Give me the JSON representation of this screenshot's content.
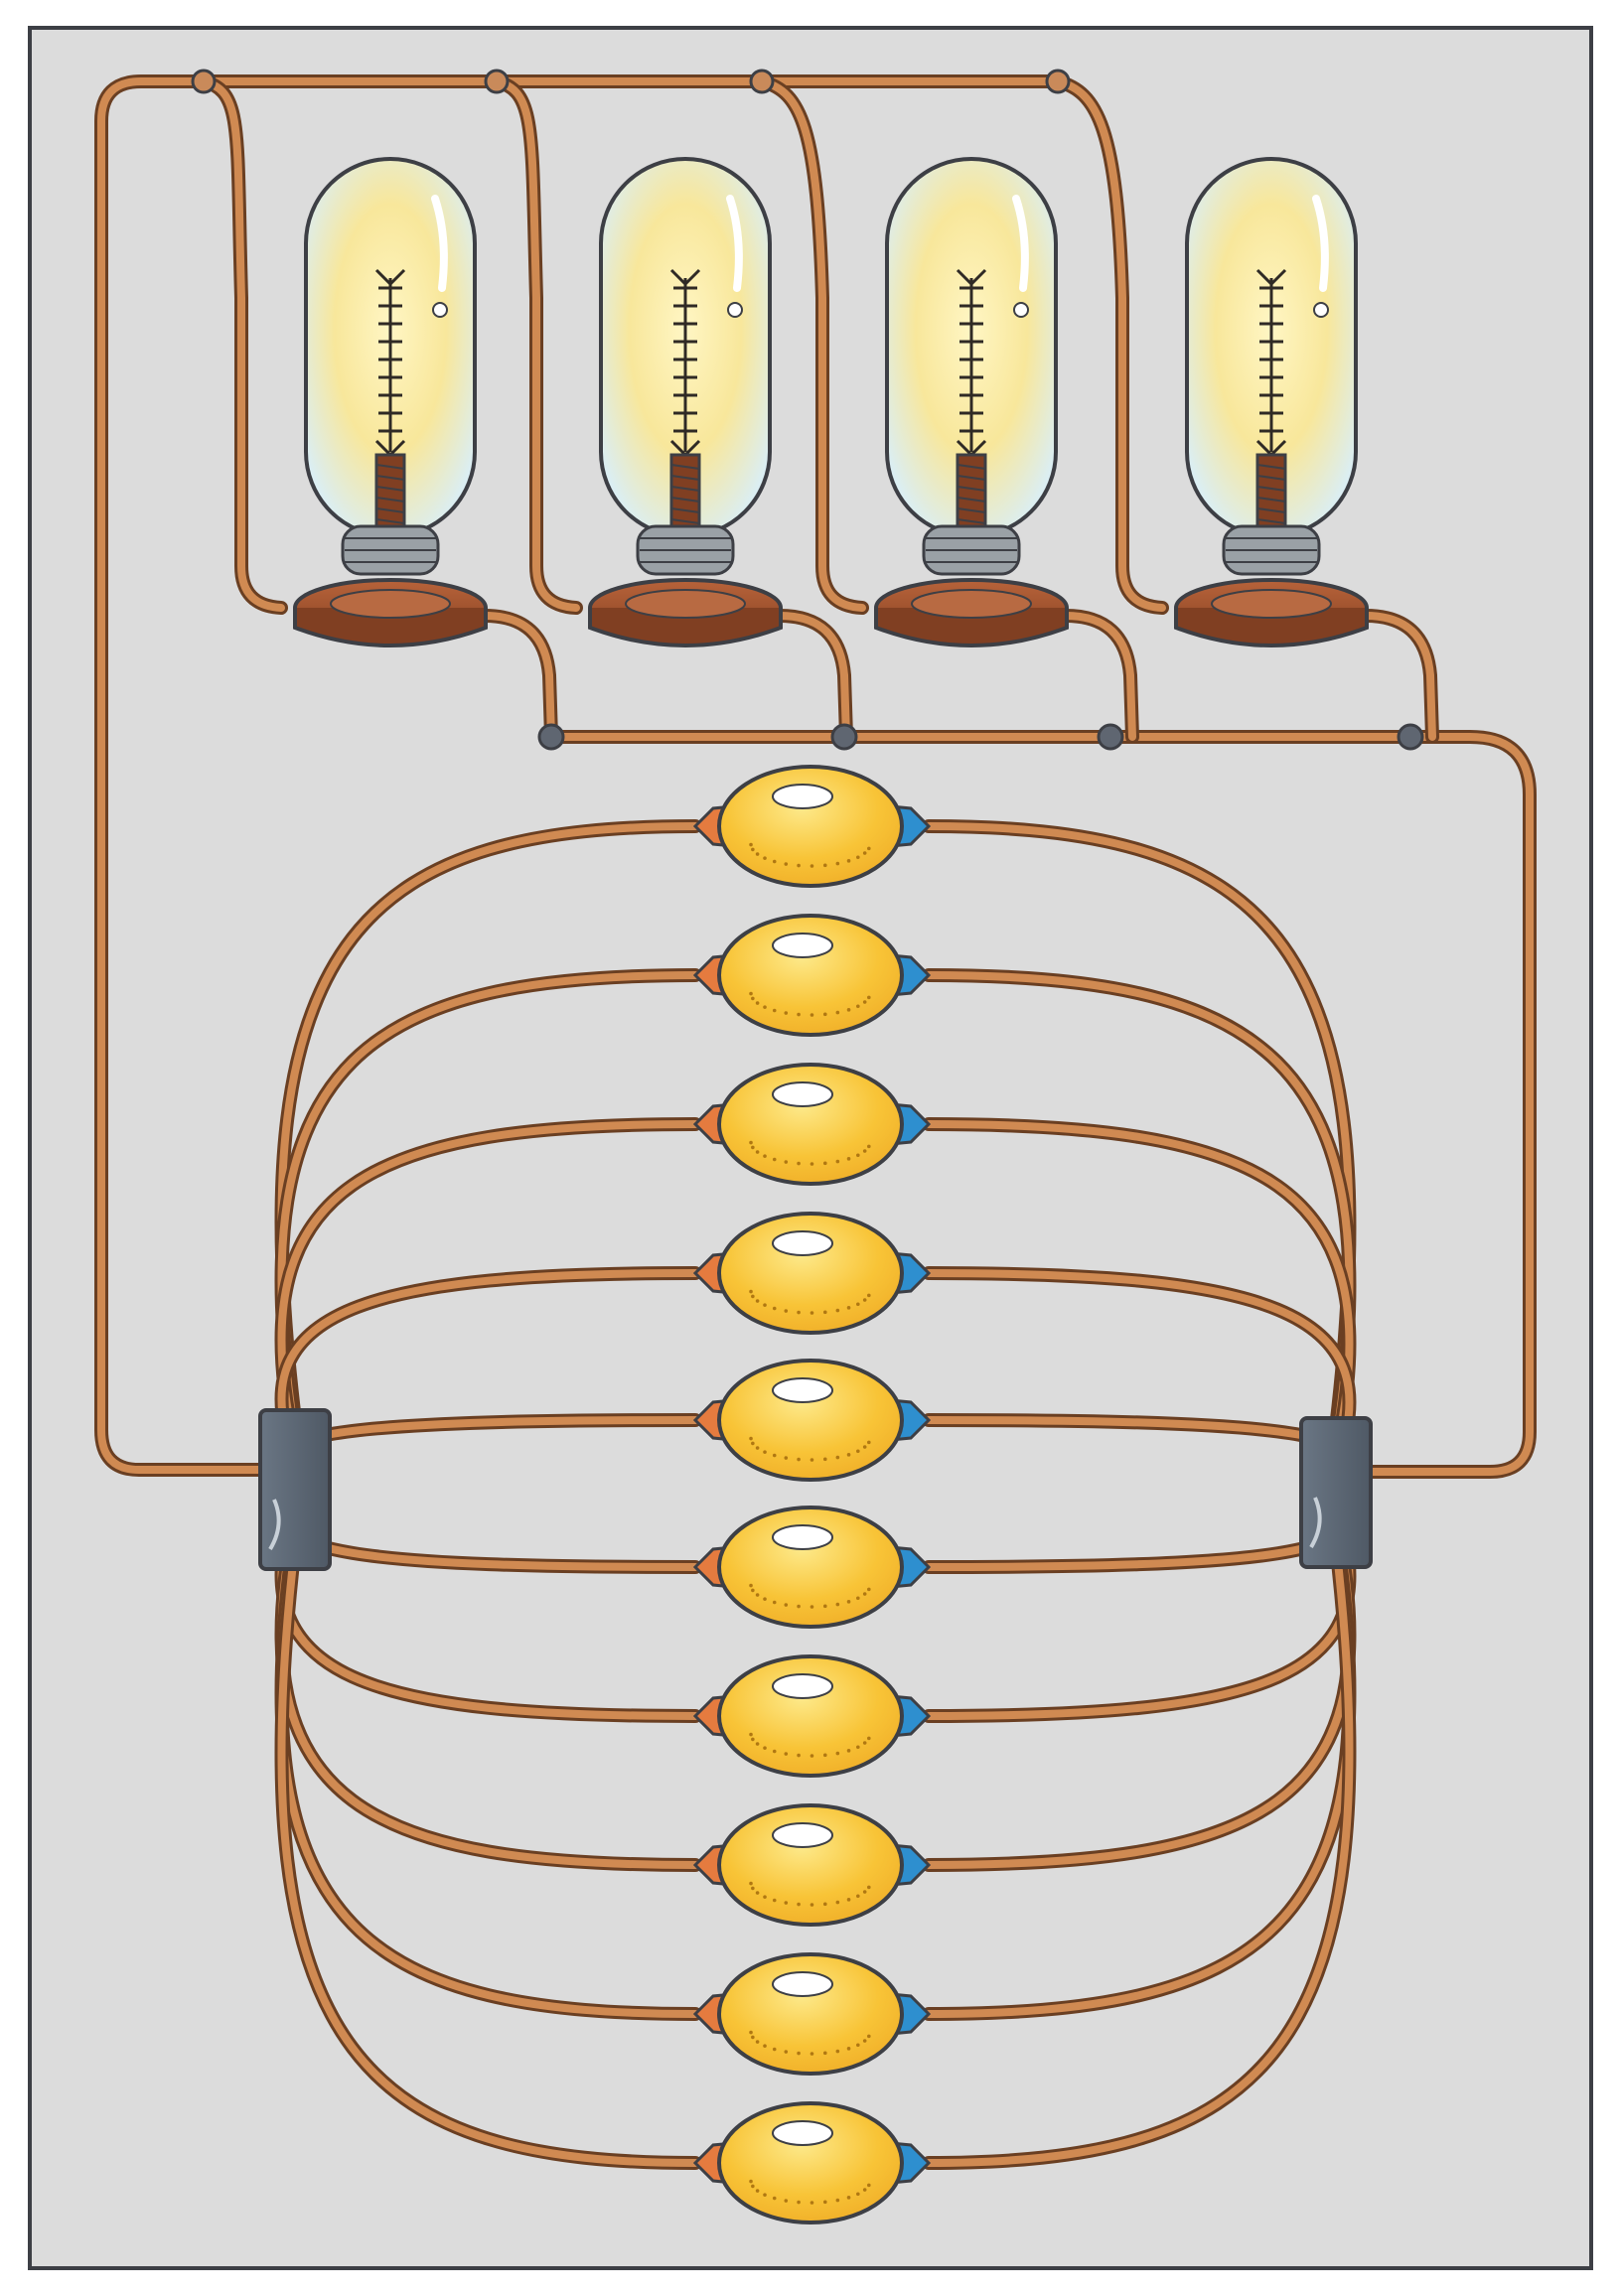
{
  "colors": {
    "paper": "#ffffff",
    "panel": "#dcdcdc",
    "outline": "#3d3f45",
    "wire": "#d08a52",
    "wire_dark": "#6a3f22",
    "lemon": "#f8c437",
    "lemon_light": "#fde57a",
    "copper_tip": "#e57b3f",
    "zinc_tip": "#2e8fcf",
    "bulb_glass": "#e3f0f4",
    "bulb_glow": "#fbe99a",
    "filament": "#2f2a25",
    "base_brown": "#ad5a34",
    "base_dark": "#803f22",
    "coil_gray": "#9aa1a6",
    "terminal_block": "#5d6875",
    "junction": "#5f6671"
  },
  "circuit": {
    "bulb_count": 4,
    "lemon_count": 10,
    "bulb_connection": "parallel",
    "lemon_connection": "parallel",
    "terminal_blocks": 2,
    "icons": [
      "light-bulb-icon",
      "lemon-cell-icon",
      "terminal-block-icon",
      "wire-junction-icon"
    ]
  }
}
